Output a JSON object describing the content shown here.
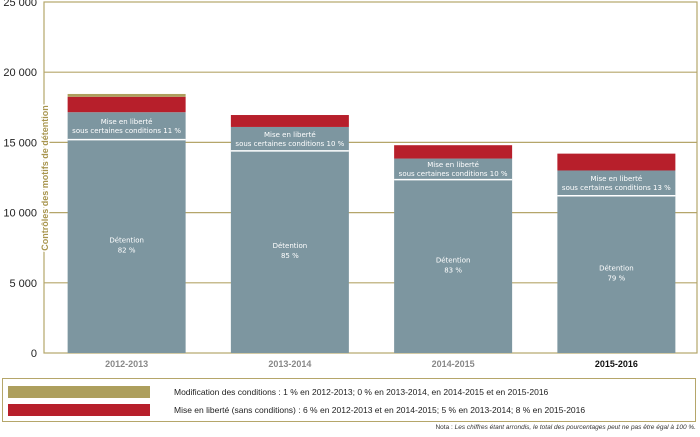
{
  "chart_data": {
    "type": "bar",
    "stacked": true,
    "ylabel": "Contrôles des motifs de détention",
    "ylim": [
      0,
      25000
    ],
    "yticks": [
      "0",
      "5 000",
      "10 000",
      "15 000",
      "20 000",
      "25 000"
    ],
    "ytick_values": [
      0,
      5000,
      10000,
      15000,
      20000,
      25000
    ],
    "grid": true,
    "categories": [
      "2012-2013",
      "2013-2014",
      "2014-2015",
      "2015-2016"
    ],
    "bold_category": "2015-2016",
    "series": [
      {
        "name": "Détention",
        "color": "#7d96a0",
        "values": [
          15200,
          14400,
          12350,
          11200
        ],
        "labels": [
          "82 %",
          "85 %",
          "83 %",
          "79 %"
        ]
      },
      {
        "name": "Mise en liberté sous certaines conditions",
        "color": "#7d96a0",
        "values": [
          1950,
          1700,
          1500,
          1800
        ],
        "labels": [
          "11 %",
          "10 %",
          "10 %",
          "13 %"
        ]
      },
      {
        "name": "Mise en liberté (sans conditions)",
        "color": "#b71f2b",
        "values": [
          1100,
          850,
          950,
          1200
        ]
      },
      {
        "name": "Modification des conditions",
        "color": "#ad9f5d",
        "values": [
          200,
          0,
          0,
          0
        ]
      }
    ],
    "bar_label_detention": "Détention",
    "bar_label_mel_line1": "Mise en liberté",
    "bar_label_mel_line2": "sous certaines conditions",
    "legend_position": "bottom"
  },
  "legend": {
    "items": [
      {
        "color": "#ad9f5d",
        "text": "Modification des conditions : 1 % en 2012-2013; 0 % en 2013-2014, en 2014-2015 et en 2015-2016"
      },
      {
        "color": "#b71f2b",
        "text": "Mise en liberté (sans conditions) : 6 % en 2012-2013 et en 2014-2015; 5 % en 2013-2014; 8 % en 2015-2016"
      }
    ]
  },
  "note": {
    "label": "Nota :",
    "text": "Les chiffres étant arrondis, le total des pourcentages peut ne pas être égal à 100 %."
  },
  "colors": {
    "axis": "#b5a66a",
    "axis_label": "#a8954e"
  }
}
